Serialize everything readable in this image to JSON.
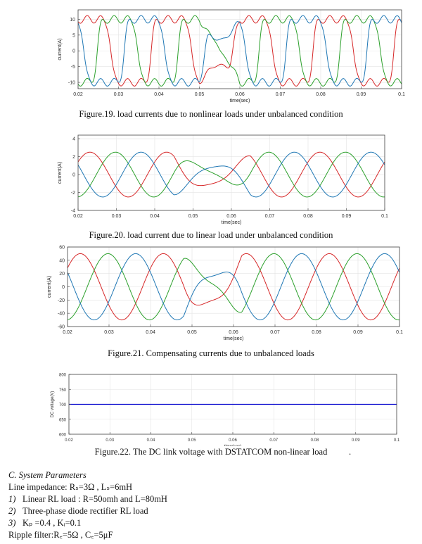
{
  "figures": [
    {
      "caption": "Figure.19. load currents due to nonlinear loads  under unbalanced condition",
      "chart_data": {
        "type": "line",
        "kind": "nonlinear",
        "xlabel": "time(sec)",
        "ylabel": "current(A)",
        "xlim": [
          0.02,
          0.1
        ],
        "ylim": [
          -12,
          13
        ],
        "xticks": [
          "0.02",
          "0.03",
          "0.04",
          "0.05",
          "0.06",
          "0.07",
          "0.08",
          "0.09",
          "0.1"
        ],
        "yticks": [
          "-10",
          "-5",
          "0",
          "5",
          "10"
        ],
        "ytick_values": [
          -10,
          -5,
          0,
          5,
          10
        ],
        "frequency_hz": 50,
        "amplitude_before": 10,
        "amplitude_after": 10,
        "disturbance": [
          0.05,
          0.06
        ],
        "series_colors": [
          "#d62728",
          "#2ca02c",
          "#1f77b4"
        ]
      }
    },
    {
      "caption": "Figure.20. load current due to linear load under unbalanced condition",
      "chart_data": {
        "type": "line",
        "kind": "sine",
        "xlabel": "time(sec)",
        "ylabel": "current(A)",
        "xlim": [
          0.02,
          0.1
        ],
        "ylim": [
          -4,
          4.4
        ],
        "xticks": [
          "0.02",
          "0.03",
          "0.04",
          "0.05",
          "0.06",
          "0.07",
          "0.08",
          "0.09",
          "0.1"
        ],
        "yticks": [
          "-4",
          "-2",
          "0",
          "2",
          "4"
        ],
        "ytick_values": [
          -4,
          -2,
          0,
          2,
          4
        ],
        "frequency_hz": 50,
        "amplitude_before": 2.5,
        "amplitude_after": 2.5,
        "disturbance": [
          0.045,
          0.065
        ],
        "series_colors": [
          "#d62728",
          "#2ca02c",
          "#1f77b4"
        ]
      }
    },
    {
      "caption": "Figure.21. Compensating currents due to unbalanced loads",
      "chart_data": {
        "type": "line",
        "kind": "sine",
        "xlabel": "time(sec)",
        "ylabel": "current(A)",
        "xlim": [
          0.02,
          0.1
        ],
        "ylim": [
          -60,
          60
        ],
        "xticks": [
          "0.02",
          "0.03",
          "0.04",
          "0.05",
          "0.06",
          "0.07",
          "0.08",
          "0.09",
          "0.1"
        ],
        "yticks": [
          "-60",
          "-40",
          "-20",
          "0",
          "20",
          "40",
          "60"
        ],
        "ytick_values": [
          -60,
          -40,
          -20,
          0,
          20,
          40,
          60
        ],
        "frequency_hz": 50,
        "amplitude_before": 50,
        "amplitude_after": 52,
        "disturbance": [
          0.048,
          0.062
        ],
        "series_colors": [
          "#d62728",
          "#2ca02c",
          "#1f77b4"
        ]
      }
    },
    {
      "caption": "Figure.22. The DC link voltage with DSTATCOM  non-linear load",
      "chart_data": {
        "type": "line",
        "kind": "dc",
        "xlabel": "time(sec)",
        "ylabel": "DC voltage(V)",
        "xlim": [
          0.02,
          0.1
        ],
        "ylim": [
          600,
          800
        ],
        "xticks": [
          "0.02",
          "0.03",
          "0.04",
          "0.05",
          "0.06",
          "0.07",
          "0.08",
          "0.09",
          "0.1"
        ],
        "yticks": [
          "600",
          "650",
          "700",
          "750",
          "800"
        ],
        "ytick_values": [
          600,
          650,
          700,
          750,
          800
        ],
        "dc_value": 700,
        "series_colors": [
          "#0000cc"
        ]
      }
    }
  ],
  "trailing_mark": ".",
  "section": {
    "heading": "C.  System Parameters",
    "line_impedance": "Line impedance: Rₛ=3Ω , Lₛ=6mH",
    "items": [
      {
        "num": "1)",
        "text": "Linear  RL load : R=50omh and L=80mH"
      },
      {
        "num": "2)",
        "text": "Three-phase diode rectifier RL load"
      },
      {
        "num": "3)",
        "text": "Kₚ =0.4 , Kᵢ=0.1"
      }
    ],
    "ripple_filter": "Ripple filter:R꜀=5Ω , C꜀=5μF"
  }
}
